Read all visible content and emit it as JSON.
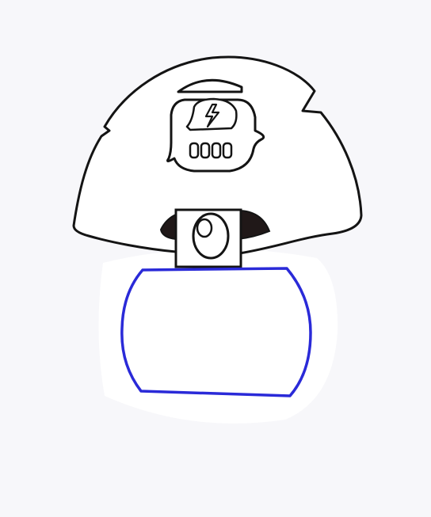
{
  "drawing": {
    "subject": "mushroom-robot-doodle",
    "colors": {
      "ink": "#141414",
      "highlight": "#2a2ad8",
      "paper": "#f7f7fa",
      "cutout": "#ffffff",
      "eye_socket": "#201818"
    },
    "icons": [
      "lightning-bolt-icon"
    ]
  }
}
